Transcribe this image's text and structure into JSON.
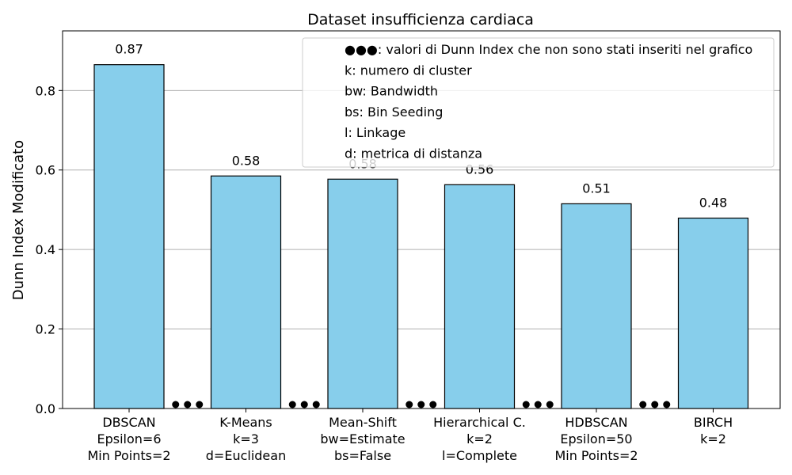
{
  "chart_data": {
    "type": "bar",
    "title": "Dataset insufficienza cardiaca",
    "ylabel": "Dunn Index Modificato",
    "xlabel": "",
    "ylim": [
      0,
      0.95
    ],
    "yticks": [
      "0.0",
      "0.2",
      "0.4",
      "0.6",
      "0.8"
    ],
    "grid": "y",
    "bar_color": "#87CEEB",
    "categories": [
      [
        "DBSCAN",
        "Epsilon=6",
        "Min Points=2"
      ],
      [
        "K-Means",
        "k=3",
        "d=Euclidean"
      ],
      [
        "Mean-Shift",
        "bw=Estimate",
        "bs=False"
      ],
      [
        "Hierarchical C.",
        "k=2",
        "l=Complete"
      ],
      [
        "HDBSCAN",
        "Epsilon=50",
        "Min Points=2"
      ],
      [
        "BIRCH",
        "k=2"
      ]
    ],
    "values": [
      0.865,
      0.585,
      0.577,
      0.563,
      0.515,
      0.479
    ],
    "value_labels": [
      "0.87",
      "0.58",
      "0.58",
      "0.56",
      "0.51",
      "0.48"
    ],
    "omitted_markers_between_bars": 5,
    "legend": {
      "placement": "top-right",
      "entries": [
        "●●●: valori di Dunn Index che non sono stati inseriti nel grafico",
        "k: numero di cluster",
        "bw: Bandwidth",
        "bs: Bin Seeding",
        "l: Linkage",
        "d: metrica di distanza"
      ]
    }
  }
}
